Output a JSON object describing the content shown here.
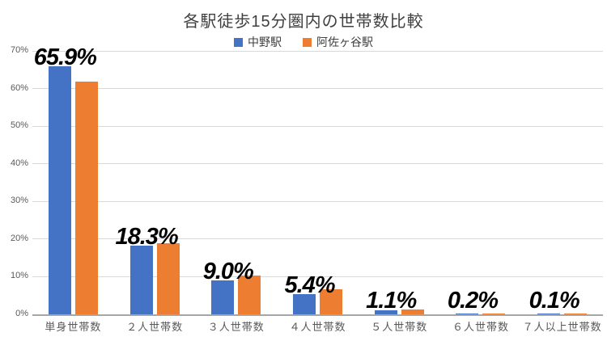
{
  "title": "各駅徒歩15分圏内の世帯数比較",
  "chart_data": {
    "type": "bar",
    "title": "各駅徒歩15分圏内の世帯数比較",
    "categories": [
      "単身世帯数",
      "２人世帯数",
      "３人世帯数",
      "４人世帯数",
      "５人世帯数",
      "６人世帯数",
      "７人以上世帯数"
    ],
    "series": [
      {
        "name": "中野駅",
        "color": "#4472C4",
        "values": [
          65.9,
          18.3,
          9.0,
          5.4,
          1.1,
          0.2,
          0.1
        ]
      },
      {
        "name": "阿佐ヶ谷駅",
        "color": "#ED7D31",
        "values": [
          61.8,
          19.0,
          10.4,
          6.6,
          1.3,
          0.3,
          0.15
        ]
      }
    ],
    "data_labels": [
      "65.9%",
      "18.3%",
      "9.0%",
      "5.4%",
      "1.1%",
      "0.2%",
      "0.1%"
    ],
    "data_labels_series": "中野駅",
    "xlabel": "",
    "ylabel": "",
    "ylim": [
      0,
      70
    ],
    "ytick_step": 10,
    "yticks": [
      "0%",
      "10%",
      "20%",
      "30%",
      "40%",
      "50%",
      "60%",
      "70%"
    ],
    "grid": true,
    "legend_position": "top",
    "colors": {
      "grid": "#d9d9d9",
      "axis": "#a6a6a6",
      "tick_text": "#595959",
      "title_text": "#404040",
      "label_text": "#000000"
    }
  }
}
